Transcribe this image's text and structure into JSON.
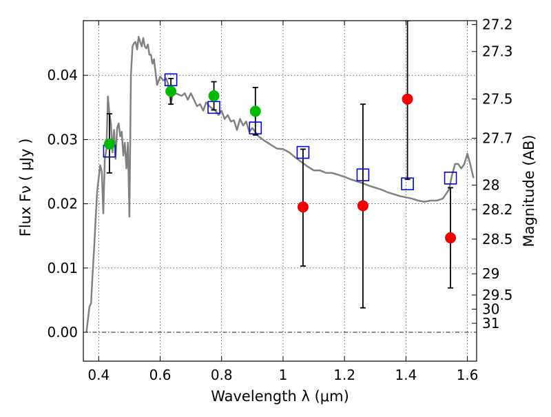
{
  "chart_data": {
    "type": "scatter",
    "xlabel": "Wavelength  λ (μm)",
    "ylabel": "Flux  Fν  ( μJy )",
    "y2label": "Magnitude (AB)",
    "xlim": [
      0.35,
      1.63
    ],
    "ylim": [
      -0.0045,
      0.0485
    ],
    "x_ticks": [
      0.4,
      0.6,
      0.8,
      1.0,
      1.2,
      1.4,
      1.6
    ],
    "x_tick_labels": [
      "0.4",
      "0.6",
      "0.8",
      "1",
      "1.2",
      "1.4",
      "1.6"
    ],
    "y_ticks": [
      0.0,
      0.01,
      0.02,
      0.03,
      0.04
    ],
    "y_tick_labels": [
      "0.00",
      "0.01",
      "0.02",
      "0.03",
      "0.04"
    ],
    "mag_ticks": [
      {
        "label": "27.2",
        "flux": 0.0479
      },
      {
        "label": "27.3",
        "flux": 0.0437
      },
      {
        "label": "27.5",
        "flux": 0.0363
      },
      {
        "label": "27.7",
        "flux": 0.0302
      },
      {
        "label": "28",
        "flux": 0.0229
      },
      {
        "label": "28.2",
        "flux": 0.0191
      },
      {
        "label": "28.5",
        "flux": 0.0145
      },
      {
        "label": "29",
        "flux": 0.0091
      },
      {
        "label": "29.5",
        "flux": 0.0058
      },
      {
        "label": "30",
        "flux": 0.0036
      },
      {
        "label": "31",
        "flux": 0.0014
      }
    ],
    "grid": true,
    "colors": {
      "model": "#808080",
      "model_points": "#0000cc",
      "detections": "#00b800",
      "nondetections": "#ee0000",
      "errorbars": "#000000",
      "zero_line": "#000000"
    },
    "series": [
      {
        "type": "line",
        "x": [
          0.36,
          0.37,
          0.375,
          0.38,
          0.385,
          0.39,
          0.395,
          0.4,
          0.405,
          0.41,
          0.415,
          0.42,
          0.425,
          0.43,
          0.435,
          0.44,
          0.445,
          0.45,
          0.455,
          0.46,
          0.465,
          0.47,
          0.475,
          0.48,
          0.485,
          0.49,
          0.495,
          0.5,
          0.505,
          0.51,
          0.515,
          0.52,
          0.525,
          0.53,
          0.535,
          0.54,
          0.545,
          0.55,
          0.555,
          0.56,
          0.565,
          0.57,
          0.575,
          0.58,
          0.585,
          0.59,
          0.6,
          0.61,
          0.62,
          0.625,
          0.63,
          0.635,
          0.64,
          0.645,
          0.65,
          0.66,
          0.67,
          0.68,
          0.69,
          0.7,
          0.71,
          0.72,
          0.73,
          0.74,
          0.75,
          0.76,
          0.77,
          0.78,
          0.79,
          0.8,
          0.81,
          0.82,
          0.83,
          0.84,
          0.85,
          0.86,
          0.87,
          0.88,
          0.89,
          0.9,
          0.92,
          0.94,
          0.96,
          0.98,
          1.0,
          1.02,
          1.04,
          1.06,
          1.08,
          1.1,
          1.12,
          1.14,
          1.16,
          1.18,
          1.2,
          1.22,
          1.24,
          1.26,
          1.28,
          1.3,
          1.32,
          1.34,
          1.36,
          1.38,
          1.4,
          1.42,
          1.44,
          1.46,
          1.48,
          1.5,
          1.52,
          1.54,
          1.55,
          1.56,
          1.57,
          1.58,
          1.59,
          1.6,
          1.61,
          1.62
        ],
        "y": [
          0.0,
          0.004,
          0.0045,
          0.009,
          0.013,
          0.0175,
          0.022,
          0.024,
          0.026,
          0.025,
          0.0185,
          0.027,
          0.0285,
          0.0367,
          0.034,
          0.0325,
          0.028,
          0.0315,
          0.027,
          0.0318,
          0.0325,
          0.0305,
          0.0312,
          0.0275,
          0.0295,
          0.0255,
          0.0295,
          0.018,
          0.04,
          0.0445,
          0.045,
          0.0452,
          0.044,
          0.046,
          0.0452,
          0.0445,
          0.0458,
          0.0445,
          0.0442,
          0.0448,
          0.0432,
          0.0432,
          0.0418,
          0.0425,
          0.0405,
          0.0385,
          0.0398,
          0.0392,
          0.0395,
          0.0388,
          0.0372,
          0.0355,
          0.0368,
          0.0378,
          0.0372,
          0.037,
          0.0368,
          0.0372,
          0.0362,
          0.0372,
          0.0362,
          0.0352,
          0.0355,
          0.0345,
          0.0358,
          0.0352,
          0.0348,
          0.0345,
          0.0338,
          0.0345,
          0.0332,
          0.0338,
          0.0328,
          0.033,
          0.0315,
          0.0332,
          0.0322,
          0.0328,
          0.0312,
          0.0318,
          0.0305,
          0.0298,
          0.0292,
          0.0286,
          0.0285,
          0.028,
          0.0272,
          0.0265,
          0.0258,
          0.0252,
          0.0252,
          0.0248,
          0.0248,
          0.0245,
          0.0242,
          0.0238,
          0.0235,
          0.0232,
          0.0228,
          0.0225,
          0.0222,
          0.0218,
          0.0215,
          0.0212,
          0.021,
          0.0208,
          0.0205,
          0.0203,
          0.0205,
          0.0205,
          0.0208,
          0.0222,
          0.0245,
          0.0262,
          0.0262,
          0.0255,
          0.0262,
          0.0278,
          0.026,
          0.024
        ]
      },
      {
        "type": "scatter",
        "marker": "open-square",
        "x": [
          0.435,
          0.635,
          0.775,
          0.91,
          1.065,
          1.26,
          1.405,
          1.545
        ],
        "y": [
          0.0282,
          0.0393,
          0.035,
          0.0318,
          0.028,
          0.0245,
          0.0231,
          0.024
        ]
      },
      {
        "type": "errorbar",
        "marker": "filled-circle",
        "x": [
          0.435,
          0.635,
          0.775,
          0.91
        ],
        "y": [
          0.0293,
          0.0375,
          0.0368,
          0.0344
        ],
        "yerr_low": [
          0.0045,
          0.002,
          0.0022,
          0.0037
        ],
        "yerr_high": [
          0.0047,
          0.002,
          0.0022,
          0.0037
        ]
      },
      {
        "type": "errorbar",
        "marker": "filled-circle",
        "x": [
          1.065,
          1.26,
          1.405,
          1.545
        ],
        "y": [
          0.0195,
          0.0197,
          0.0363,
          0.0147
        ],
        "yerr_low": [
          0.0092,
          0.0159,
          0.0125,
          0.0078
        ],
        "yerr_high": [
          0.009,
          0.0158,
          0.0122,
          0.0078
        ]
      }
    ]
  }
}
